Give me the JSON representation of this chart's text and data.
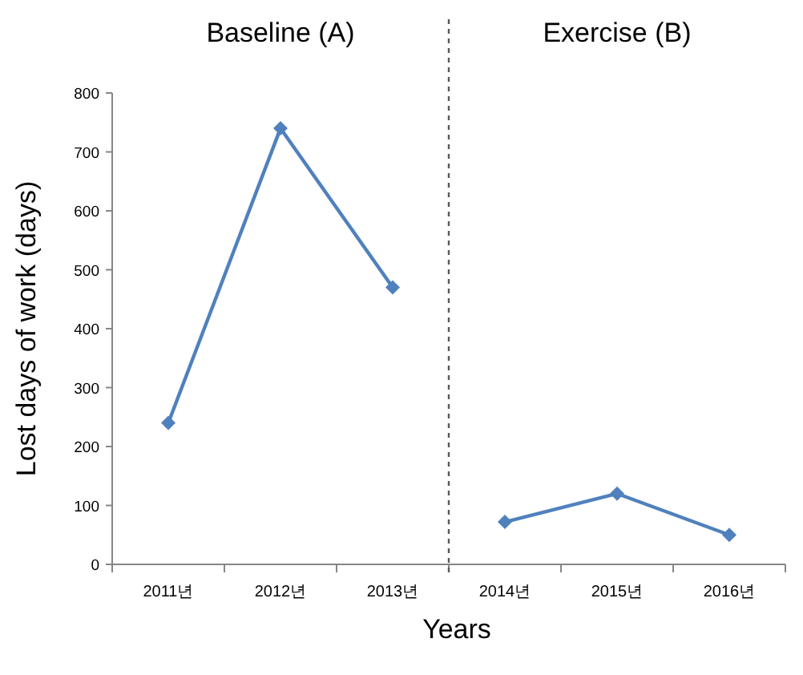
{
  "chart_data": {
    "type": "line",
    "xlabel": "Years",
    "ylabel": "Lost days of work (days)",
    "categories": [
      "2011년",
      "2012년",
      "2013년",
      "2014년",
      "2015년",
      "2016년"
    ],
    "series": [
      {
        "color": "#4f81bd",
        "values": [
          240,
          740,
          470,
          null,
          null,
          null
        ]
      },
      {
        "color": "#4f81bd",
        "values": [
          null,
          null,
          null,
          72,
          120,
          50
        ]
      }
    ],
    "ylim": [
      0,
      800
    ],
    "yticks": [
      0,
      100,
      200,
      300,
      400,
      500,
      600,
      700,
      800
    ],
    "marker": "diamond",
    "line_style": "solid",
    "grid": false,
    "annotations": [
      "Baseline (A)",
      "Exercise (B)"
    ]
  }
}
